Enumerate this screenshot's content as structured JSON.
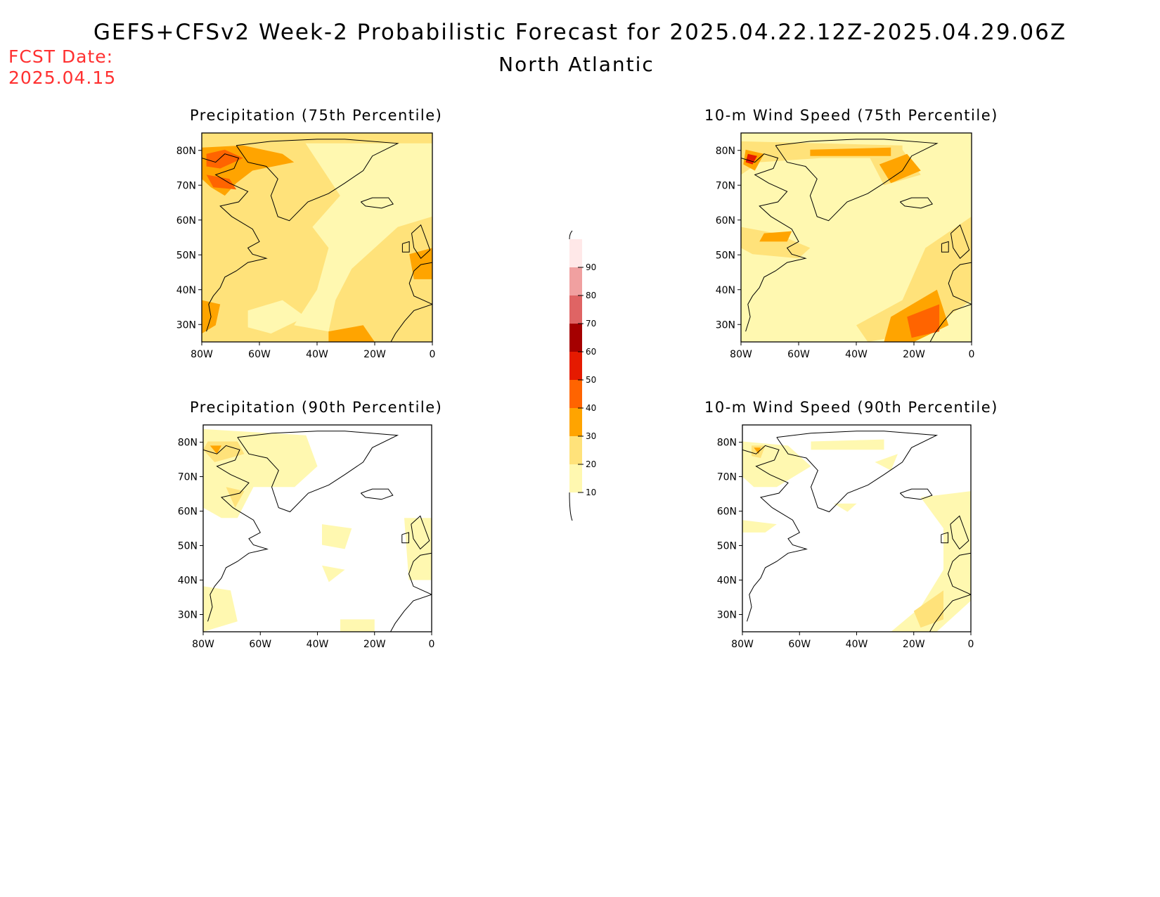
{
  "title": "GEFS+CFSv2 Week-2 Probabilistic Forecast for 2025.04.22.12Z-2025.04.29.06Z",
  "subtitle": "North Atlantic",
  "fcst_label": "FCST Date:",
  "fcst_date": "2025.04.15",
  "panels": [
    {
      "title": "Precipitation (75th Percentile)"
    },
    {
      "title": "10-m Wind Speed (75th Percentile)"
    },
    {
      "title": "Precipitation (90th Percentile)"
    },
    {
      "title": "10-m Wind Speed (90th Percentile)"
    }
  ],
  "lat_labels": [
    "80N",
    "70N",
    "60N",
    "50N",
    "40N",
    "30N"
  ],
  "lon_labels": [
    "80W",
    "60W",
    "40W",
    "20W",
    "0"
  ],
  "colorbar": {
    "levels": [
      "10",
      "20",
      "30",
      "40",
      "50",
      "60",
      "70",
      "80",
      "90"
    ],
    "colors": [
      "#fff8b0",
      "#ffe27a",
      "#ffa400",
      "#ff6400",
      "#e51a00",
      "#a50000",
      "#df6464",
      "#f0a0a0",
      "#ffe8e8"
    ]
  }
}
